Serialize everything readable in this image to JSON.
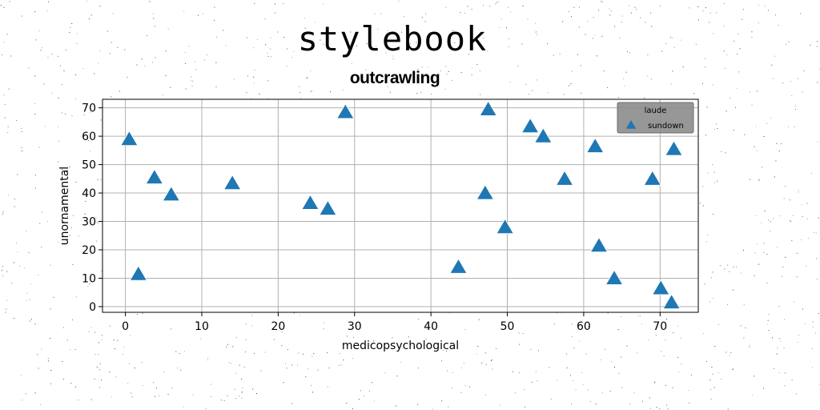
{
  "title": "stylebook",
  "chart_data": {
    "type": "scatter",
    "subtitle": "outcrawling",
    "xlabel": "medicopsychological",
    "ylabel": "unornamental",
    "xlim": [
      -3,
      75
    ],
    "ylim": [
      -2,
      73
    ],
    "xticks": [
      0,
      10,
      20,
      30,
      40,
      50,
      60,
      70
    ],
    "yticks": [
      0,
      10,
      20,
      30,
      40,
      50,
      60,
      70
    ],
    "grid": true,
    "legend": {
      "title": "laude",
      "placement": "top-right"
    },
    "marker": "triangle-up",
    "series": [
      {
        "name": "sundown",
        "color": "#1f77b4",
        "points": [
          [
            0.5,
            59
          ],
          [
            1.7,
            11.5
          ],
          [
            3.8,
            45.5
          ],
          [
            6,
            39.5
          ],
          [
            14,
            43.5
          ],
          [
            24.2,
            36.5
          ],
          [
            26.5,
            34.5
          ],
          [
            28.8,
            68.5
          ],
          [
            43.6,
            14
          ],
          [
            47.1,
            40
          ],
          [
            47.5,
            69.5
          ],
          [
            49.7,
            28
          ],
          [
            53,
            63.5
          ],
          [
            54.7,
            60
          ],
          [
            57.5,
            45
          ],
          [
            61.5,
            56.5
          ],
          [
            62,
            21.5
          ],
          [
            64,
            10
          ],
          [
            69,
            45
          ],
          [
            70.1,
            6.5
          ],
          [
            71.5,
            1.5
          ],
          [
            71.8,
            55.5
          ]
        ]
      }
    ]
  }
}
